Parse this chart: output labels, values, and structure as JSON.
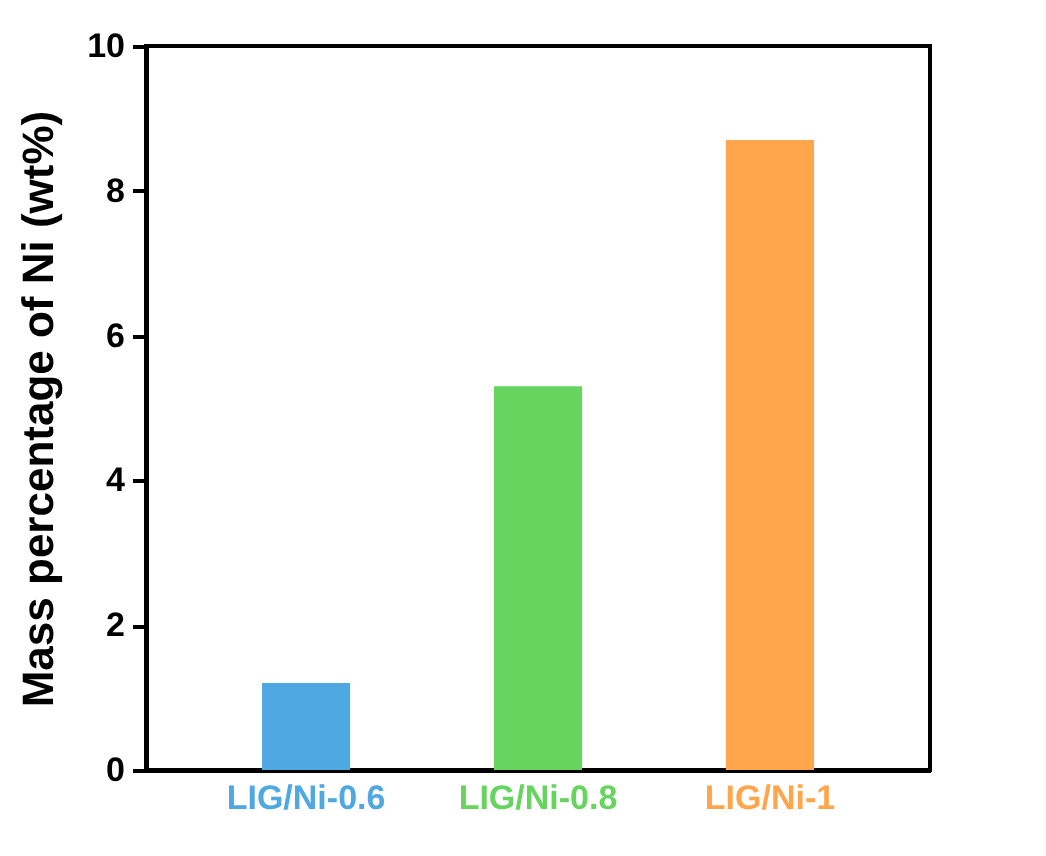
{
  "chart_data": {
    "type": "bar",
    "ylabel": "Mass percentage of Ni (wt%)",
    "categories": [
      "LIG/Ni-0.6",
      "LIG/Ni-0.8",
      "LIG/Ni-1"
    ],
    "values": [
      1.2,
      5.3,
      8.7
    ],
    "colors": [
      "#4fa8e1",
      "#66d45f",
      "#ffa64d"
    ],
    "ylim": [
      0,
      10
    ],
    "yticks": [
      0,
      2,
      4,
      6,
      8,
      10
    ],
    "grid": false,
    "legend": false
  }
}
